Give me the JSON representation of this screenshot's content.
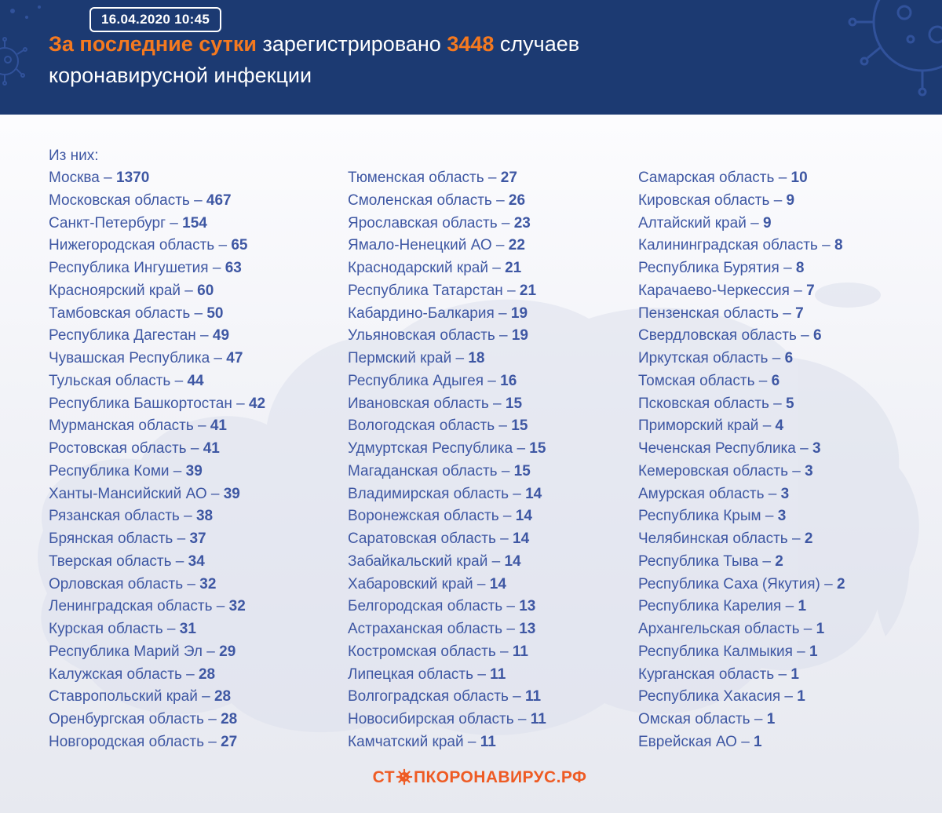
{
  "header": {
    "timestamp": "16.04.2020 10:45",
    "title": {
      "highlight": "За последние сутки",
      "middle": " зарегистрировано ",
      "number": "3448",
      "after_number": " случаев",
      "line2": "коронавирусной инфекции"
    }
  },
  "list": {
    "intro": "Из них:",
    "separator": "–",
    "columns": [
      {
        "items": [
          {
            "region": "Москва",
            "value": "1370"
          },
          {
            "region": "Московская область",
            "value": "467"
          },
          {
            "region": "Санкт-Петербург",
            "value": "154"
          },
          {
            "region": "Нижегородская область",
            "value": "65"
          },
          {
            "region": "Республика Ингушетия",
            "value": "63"
          },
          {
            "region": "Красноярский край",
            "value": "60"
          },
          {
            "region": "Тамбовская область",
            "value": "50"
          },
          {
            "region": "Республика Дагестан",
            "value": "49"
          },
          {
            "region": "Чувашская Республика",
            "value": "47"
          },
          {
            "region": "Тульская область",
            "value": "44"
          },
          {
            "region": "Республика Башкортостан",
            "value": "42"
          },
          {
            "region": "Мурманская область",
            "value": "41"
          },
          {
            "region": "Ростовская область",
            "value": "41"
          },
          {
            "region": "Республика Коми",
            "value": "39"
          },
          {
            "region": "Ханты-Мансийский АО",
            "value": "39"
          },
          {
            "region": "Рязанская область",
            "value": "38"
          },
          {
            "region": "Брянская область",
            "value": "37"
          },
          {
            "region": "Тверская область",
            "value": "34"
          },
          {
            "region": "Орловская область",
            "value": "32"
          },
          {
            "region": "Ленинградская область",
            "value": "32"
          },
          {
            "region": "Курская область",
            "value": "31"
          },
          {
            "region": "Республика Марий Эл",
            "value": "29"
          },
          {
            "region": "Калужская область",
            "value": "28"
          },
          {
            "region": "Ставропольский край",
            "value": "28"
          },
          {
            "region": "Оренбургская область",
            "value": "28"
          },
          {
            "region": "Новгородская область",
            "value": "27"
          }
        ]
      },
      {
        "items": [
          {
            "region": "Тюменская область",
            "value": "27"
          },
          {
            "region": "Смоленская область",
            "value": "26"
          },
          {
            "region": "Ярославская область",
            "value": "23"
          },
          {
            "region": "Ямало-Ненецкий АО",
            "value": "22"
          },
          {
            "region": "Краснодарский край",
            "value": "21"
          },
          {
            "region": "Республика Татарстан",
            "value": "21"
          },
          {
            "region": "Кабардино-Балкария",
            "value": "19"
          },
          {
            "region": "Ульяновская область",
            "value": "19"
          },
          {
            "region": "Пермский край",
            "value": "18"
          },
          {
            "region": "Республика Адыгея",
            "value": "16"
          },
          {
            "region": "Ивановская область",
            "value": "15"
          },
          {
            "region": "Вологодская область",
            "value": "15"
          },
          {
            "region": "Удмуртская Республика",
            "value": "15"
          },
          {
            "region": "Магаданская область",
            "value": "15"
          },
          {
            "region": "Владимирская область",
            "value": "14"
          },
          {
            "region": "Воронежская область",
            "value": "14"
          },
          {
            "region": "Саратовская область",
            "value": "14"
          },
          {
            "region": "Забайкальский край",
            "value": "14"
          },
          {
            "region": "Хабаровский край",
            "value": "14"
          },
          {
            "region": "Белгородская область",
            "value": "13"
          },
          {
            "region": "Астраханская область",
            "value": "13"
          },
          {
            "region": "Костромская область",
            "value": "11"
          },
          {
            "region": "Липецкая область",
            "value": "11"
          },
          {
            "region": "Волгоградская область",
            "value": "11"
          },
          {
            "region": "Новосибирская область",
            "value": "11"
          },
          {
            "region": "Камчатский край",
            "value": "11"
          }
        ]
      },
      {
        "items": [
          {
            "region": "Самарская область",
            "value": "10"
          },
          {
            "region": "Кировская область",
            "value": "9"
          },
          {
            "region": "Алтайский край",
            "value": "9"
          },
          {
            "region": "Калининградская область",
            "value": "8"
          },
          {
            "region": "Республика Бурятия",
            "value": "8"
          },
          {
            "region": "Карачаево-Черкессия",
            "value": "7"
          },
          {
            "region": "Пензенская область",
            "value": "7"
          },
          {
            "region": "Свердловская область",
            "value": "6"
          },
          {
            "region": "Иркутская область",
            "value": "6"
          },
          {
            "region": "Томская область",
            "value": "6"
          },
          {
            "region": "Псковская область",
            "value": "5"
          },
          {
            "region": "Приморский край",
            "value": "4"
          },
          {
            "region": "Чеченская Республика",
            "value": "3"
          },
          {
            "region": "Кемеровская область",
            "value": "3"
          },
          {
            "region": "Амурская область",
            "value": "3"
          },
          {
            "region": "Республика Крым",
            "value": "3"
          },
          {
            "region": "Челябинская область",
            "value": "2"
          },
          {
            "region": "Республика Тыва",
            "value": "2"
          },
          {
            "region": "Республика Саха (Якутия)",
            "value": "2"
          },
          {
            "region": "Республика Карелия",
            "value": "1"
          },
          {
            "region": "Архангельская область",
            "value": "1"
          },
          {
            "region": "Республика Калмыкия",
            "value": "1"
          },
          {
            "region": "Курганская область",
            "value": "1"
          },
          {
            "region": "Республика Хакасия",
            "value": "1"
          },
          {
            "region": "Омская область",
            "value": "1"
          },
          {
            "region": "Еврейская АО",
            "value": "1"
          }
        ]
      }
    ]
  },
  "footer": {
    "logo_before_icon": "ст",
    "logo_after_icon": "пкоронавирус.рф"
  },
  "colors": {
    "header_bg": "#1c3a72",
    "accent_orange": "#f5791f",
    "text_blue": "#3e57a3",
    "logo_orange": "#ee5b24",
    "map_fill": "#dce0ec"
  }
}
